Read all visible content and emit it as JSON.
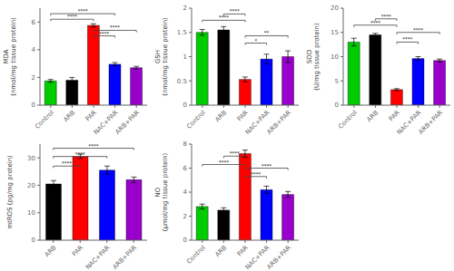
{
  "chart_data": [
    {
      "type": "bar",
      "ylabel": "MDA\n(nmol/mg tissue protein)",
      "ylim": [
        0,
        7
      ],
      "yticks": [
        0,
        2,
        4,
        6
      ],
      "categories": [
        "Control",
        "ARB",
        "PAR",
        "NAC+PAR",
        "ARB+PAR"
      ],
      "values": [
        1.75,
        1.8,
        5.75,
        2.95,
        2.7
      ],
      "errors": [
        0.1,
        0.2,
        0.12,
        0.12,
        0.1
      ],
      "colors": [
        "#00cc00",
        "#000000",
        "#ff0000",
        "#0000ff",
        "#9900cc"
      ],
      "annotations": [
        {
          "text": "****",
          "from": "Control",
          "to": "PAR",
          "y": 6.2,
          "color": "#444444"
        },
        {
          "text": "****",
          "from": "Control",
          "to": "NAC+PAR",
          "y": 6.6,
          "color": "#444444"
        },
        {
          "text": "****",
          "from": "PAR",
          "to": "NAC+PAR",
          "y": 5.0,
          "color": "#444444"
        },
        {
          "text": "****",
          "from": "PAR",
          "to": "ARB+PAR",
          "y": 5.4,
          "color": "#444444"
        }
      ]
    },
    {
      "type": "bar",
      "ylabel": "GSH\n(nmol/mg tissue protein)",
      "ylim": [
        0,
        2.0
      ],
      "yticks": [
        0,
        0.5,
        1,
        1.5,
        2
      ],
      "categories": [
        "Control",
        "ARB",
        "PAR",
        "NAC+PAR",
        "ARB+PAR"
      ],
      "values": [
        1.5,
        1.55,
        0.53,
        0.95,
        1.0
      ],
      "errors": [
        0.06,
        0.07,
        0.05,
        0.1,
        0.12
      ],
      "colors": [
        "#00cc00",
        "#000000",
        "#ff0000",
        "#0000ff",
        "#9900cc"
      ],
      "annotations": [
        {
          "text": "****",
          "from": "Control",
          "to": "PAR",
          "y": 1.75,
          "color": "#444444"
        },
        {
          "text": "****",
          "from": "ARB",
          "to": "PAR",
          "y": 1.88,
          "color": "#444444"
        },
        {
          "text": "*",
          "from": "PAR",
          "to": "NAC+PAR",
          "y": 1.28,
          "color": "#444444"
        },
        {
          "text": "**",
          "from": "PAR",
          "to": "ARB+PAR",
          "y": 1.43,
          "color": "#444444"
        }
      ]
    },
    {
      "type": "bar",
      "ylabel": "SOD\n(U/mg tissue protein)",
      "ylim": [
        0,
        20
      ],
      "yticks": [
        0,
        5,
        10,
        15,
        20
      ],
      "categories": [
        "Control",
        "ARB",
        "PAR",
        "NAC+PAR",
        "ARB+PAR"
      ],
      "values": [
        13.0,
        14.5,
        3.2,
        9.6,
        9.2
      ],
      "errors": [
        0.8,
        0.3,
        0.2,
        0.4,
        0.3
      ],
      "colors": [
        "#00cc00",
        "#000000",
        "#ff0000",
        "#0000ff",
        "#9900cc"
      ],
      "annotations": [
        {
          "text": "****",
          "from": "Control",
          "to": "PAR",
          "y": 16.5,
          "color": "#444444"
        },
        {
          "text": "****",
          "from": "ARB",
          "to": "PAR",
          "y": 17.8,
          "color": "#444444"
        },
        {
          "text": "****",
          "from": "PAR",
          "to": "NAC+PAR",
          "y": 13.0,
          "color": "#444444"
        },
        {
          "text": "****",
          "from": "PAR",
          "to": "ARB+PAR",
          "y": 15.0,
          "color": "#444444"
        }
      ]
    },
    {
      "type": "bar",
      "ylabel": "mtROS (pg/mg protein)",
      "ylim": [
        0,
        35
      ],
      "yticks": [
        0,
        10,
        20,
        30
      ],
      "categories": [
        "ARB",
        "PAR",
        "NAC+PAR",
        "ARB+PAR"
      ],
      "values": [
        20.5,
        30.5,
        25.5,
        22.0
      ],
      "errors": [
        1.2,
        0.8,
        1.5,
        1.0
      ],
      "colors": [
        "#000000",
        "#ff0000",
        "#0000ff",
        "#9900cc"
      ],
      "annotations": [
        {
          "text": "****",
          "from": "ARB",
          "to": "PAR",
          "y": 27.0,
          "color": "#444444"
        },
        {
          "text": "****",
          "from": "ARB",
          "to": "NAC+PAR",
          "y": 30.5,
          "color": "#444444"
        },
        {
          "text": "****",
          "from": "ARB",
          "to": "ARB+PAR",
          "y": 33.5,
          "color": "#444444"
        }
      ]
    },
    {
      "type": "bar",
      "ylabel": "NO\n(μmol/mg tissue protein)",
      "ylim": [
        0,
        8
      ],
      "yticks": [
        0,
        2,
        4,
        6,
        8
      ],
      "categories": [
        "Control",
        "ARB",
        "PAR",
        "NAC+PAR",
        "ARB+PAR"
      ],
      "values": [
        2.8,
        2.5,
        7.2,
        4.2,
        3.8
      ],
      "errors": [
        0.2,
        0.2,
        0.3,
        0.3,
        0.25
      ],
      "colors": [
        "#00cc00",
        "#000000",
        "#ff0000",
        "#0000ff",
        "#9900cc"
      ],
      "annotations": [
        {
          "text": "****",
          "from": "Control",
          "to": "PAR",
          "y": 6.3,
          "color": "#444444"
        },
        {
          "text": "****",
          "from": "ARB",
          "to": "PAR",
          "y": 7.0,
          "color": "#444444"
        },
        {
          "text": "****",
          "from": "PAR",
          "to": "NAC+PAR",
          "y": 5.3,
          "color": "#444444"
        },
        {
          "text": "****",
          "from": "PAR",
          "to": "ARB+PAR",
          "y": 6.0,
          "color": "#444444"
        }
      ]
    }
  ]
}
